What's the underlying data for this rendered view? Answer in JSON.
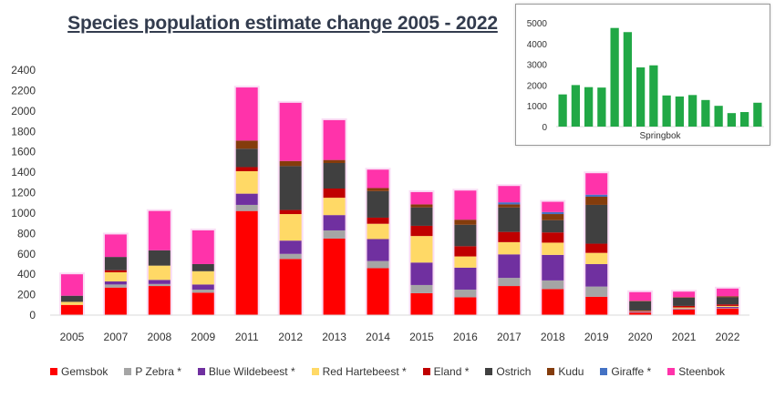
{
  "chart_data": [
    {
      "type": "bar",
      "stacked": true,
      "title": "Species population estimate change 2005 - 2022",
      "categories": [
        "2005",
        "2007",
        "2008",
        "2009",
        "2011",
        "2012",
        "2013",
        "2014",
        "2015",
        "2016",
        "2017",
        "2018",
        "2019",
        "2020",
        "2021",
        "2022"
      ],
      "ylim": [
        0,
        2400
      ],
      "yticks": [
        0,
        200,
        400,
        600,
        800,
        1000,
        1200,
        1400,
        1600,
        1800,
        2000,
        2200,
        2400
      ],
      "grid": false,
      "legend_position": "bottom",
      "series": [
        {
          "name": "Gemsbok",
          "color": "#ff0000",
          "values": [
            100,
            270,
            285,
            220,
            1020,
            550,
            750,
            460,
            215,
            175,
            285,
            255,
            180,
            25,
            55,
            65
          ]
        },
        {
          "name": "P Zebra *",
          "color": "#a5a5a5",
          "values": [
            0,
            30,
            20,
            30,
            60,
            50,
            80,
            70,
            80,
            75,
            80,
            85,
            100,
            5,
            5,
            5
          ]
        },
        {
          "name": "Blue Wildebeest *",
          "color": "#7030a0",
          "values": [
            0,
            30,
            40,
            50,
            110,
            130,
            150,
            215,
            220,
            215,
            230,
            250,
            220,
            5,
            5,
            10
          ]
        },
        {
          "name": "Red Hartebeest *",
          "color": "#ffd966",
          "values": [
            30,
            90,
            140,
            130,
            220,
            260,
            170,
            150,
            260,
            110,
            120,
            120,
            110,
            5,
            10,
            10
          ]
        },
        {
          "name": "Eland *",
          "color": "#c00000",
          "values": [
            0,
            20,
            0,
            0,
            40,
            40,
            90,
            60,
            100,
            100,
            100,
            100,
            90,
            5,
            15,
            15
          ]
        },
        {
          "name": "Ostrich",
          "color": "#404040",
          "values": [
            60,
            130,
            150,
            70,
            180,
            430,
            250,
            260,
            180,
            210,
            240,
            120,
            380,
            90,
            80,
            70
          ]
        },
        {
          "name": "Kudu",
          "color": "#843c0c",
          "values": [
            0,
            0,
            0,
            0,
            80,
            50,
            30,
            30,
            30,
            50,
            30,
            60,
            80,
            5,
            5,
            10
          ]
        },
        {
          "name": "Giraffe *",
          "color": "#4472c4",
          "values": [
            0,
            0,
            0,
            0,
            0,
            0,
            0,
            0,
            0,
            0,
            20,
            20,
            20,
            0,
            0,
            0
          ]
        },
        {
          "name": "Steenbok",
          "color": "#ff33aa",
          "values": [
            210,
            220,
            385,
            330,
            520,
            570,
            390,
            180,
            120,
            285,
            160,
            100,
            210,
            85,
            55,
            75
          ]
        }
      ]
    },
    {
      "type": "bar",
      "xlabel": "Springbok",
      "ylim": [
        0,
        5000
      ],
      "yticks": [
        0,
        1000,
        2000,
        3000,
        4000,
        5000
      ],
      "color": "#21a846",
      "values": [
        1550,
        2000,
        1900,
        1880,
        4750,
        4550,
        2850,
        2950,
        1500,
        1450,
        1520,
        1280,
        1000,
        650,
        700,
        1150
      ]
    }
  ]
}
